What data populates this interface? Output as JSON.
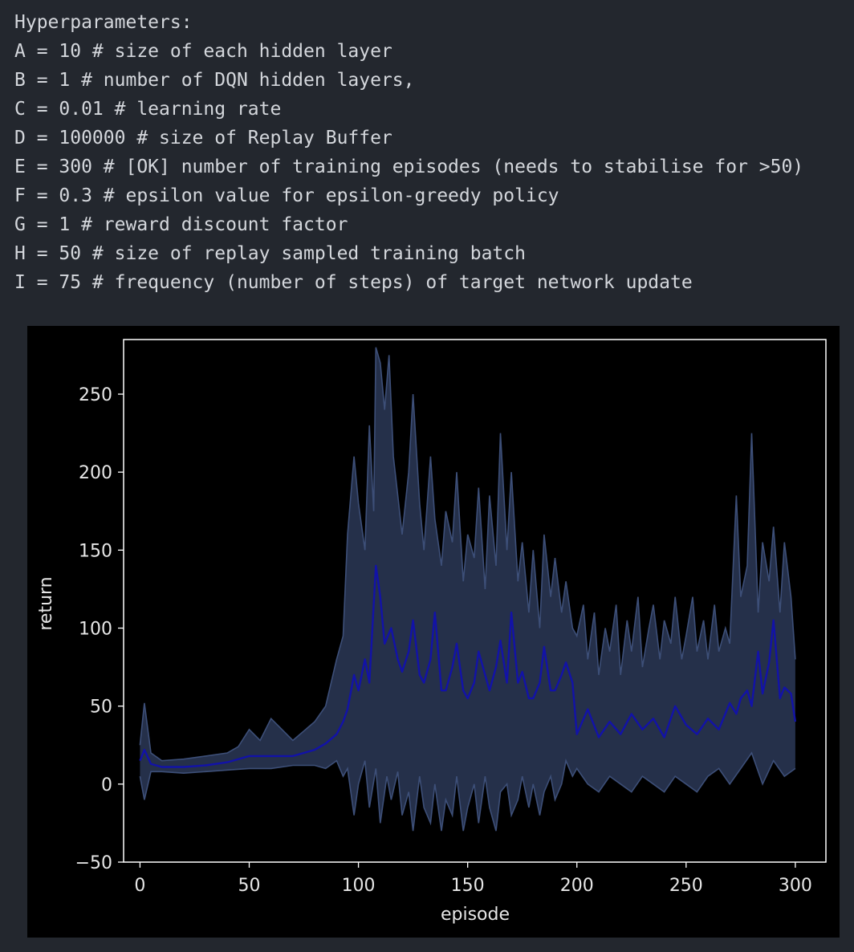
{
  "output": {
    "lines": [
      "Hyperparameters:",
      "A = 10 # size of each hidden layer",
      "B = 1 # number of DQN hidden layers,",
      "C = 0.01 # learning rate",
      "D = 100000 # size of Replay Buffer",
      "E = 300 # [OK] number of training episodes (needs to stabilise for >50)",
      "F = 0.3 # epsilon value for epsilon-greedy policy",
      "G = 1 # reward discount factor",
      "H = 50 # size of replay sampled training batch",
      "I = 75 # frequency (number of steps) of target network update"
    ]
  },
  "chart_data": {
    "type": "line",
    "title": "",
    "xlabel": "episode",
    "ylabel": "return",
    "xlim": [
      -7.5,
      314
    ],
    "ylim": [
      -50,
      285
    ],
    "xticks": [
      0,
      50,
      100,
      150,
      200,
      250,
      300
    ],
    "yticks": [
      -50,
      0,
      50,
      100,
      150,
      200,
      250
    ],
    "grid": false,
    "colors": {
      "background": "#000000",
      "axes": "#ffffff",
      "mean_line": "#1212a8",
      "band_fill": "#25304a",
      "band_edge": "#3d4f78"
    },
    "series": [
      {
        "kind": "mean",
        "x": [
          0,
          2,
          5,
          10,
          20,
          30,
          40,
          50,
          60,
          70,
          80,
          85,
          90,
          93,
          95,
          98,
          100,
          103,
          105,
          108,
          110,
          112,
          115,
          118,
          120,
          123,
          125,
          128,
          130,
          133,
          135,
          138,
          140,
          143,
          145,
          148,
          150,
          153,
          155,
          158,
          160,
          163,
          165,
          168,
          170,
          173,
          175,
          178,
          180,
          183,
          185,
          188,
          190,
          193,
          195,
          198,
          200,
          205,
          210,
          215,
          220,
          225,
          230,
          235,
          240,
          245,
          250,
          255,
          260,
          265,
          270,
          273,
          275,
          278,
          280,
          283,
          285,
          288,
          290,
          293,
          295,
          298,
          300
        ],
        "y": [
          15,
          22,
          13,
          11,
          11,
          12,
          14,
          18,
          18,
          18,
          22,
          26,
          32,
          40,
          48,
          70,
          60,
          80,
          65,
          140,
          120,
          90,
          100,
          80,
          72,
          85,
          105,
          70,
          65,
          80,
          110,
          60,
          60,
          75,
          90,
          60,
          55,
          65,
          85,
          70,
          60,
          75,
          92,
          65,
          110,
          65,
          72,
          55,
          55,
          65,
          88,
          60,
          60,
          70,
          78,
          65,
          32,
          48,
          30,
          40,
          32,
          45,
          35,
          42,
          30,
          50,
          38,
          32,
          42,
          35,
          52,
          45,
          55,
          60,
          50,
          85,
          58,
          78,
          105,
          55,
          62,
          58,
          40
        ]
      },
      {
        "kind": "upper",
        "x": [
          0,
          2,
          5,
          10,
          20,
          30,
          40,
          45,
          50,
          55,
          60,
          65,
          70,
          80,
          85,
          90,
          93,
          95,
          98,
          100,
          103,
          105,
          107,
          108,
          110,
          112,
          114,
          116,
          118,
          120,
          123,
          125,
          128,
          130,
          133,
          135,
          138,
          140,
          143,
          145,
          148,
          150,
          153,
          155,
          158,
          160,
          163,
          165,
          168,
          170,
          173,
          175,
          178,
          180,
          183,
          185,
          188,
          190,
          193,
          195,
          198,
          200,
          203,
          205,
          208,
          210,
          213,
          215,
          218,
          220,
          223,
          225,
          228,
          230,
          233,
          235,
          238,
          240,
          243,
          245,
          248,
          250,
          253,
          255,
          258,
          260,
          263,
          265,
          268,
          270,
          273,
          275,
          278,
          280,
          283,
          285,
          288,
          290,
          293,
          295,
          298,
          300
        ],
        "y": [
          25,
          52,
          20,
          15,
          16,
          18,
          20,
          24,
          35,
          28,
          42,
          35,
          28,
          40,
          50,
          80,
          95,
          160,
          210,
          180,
          150,
          230,
          175,
          280,
          270,
          240,
          275,
          210,
          185,
          160,
          200,
          250,
          180,
          150,
          210,
          170,
          140,
          175,
          155,
          200,
          130,
          160,
          145,
          190,
          125,
          185,
          140,
          225,
          150,
          200,
          130,
          155,
          110,
          150,
          100,
          160,
          120,
          145,
          110,
          130,
          100,
          95,
          115,
          80,
          110,
          70,
          100,
          85,
          115,
          70,
          105,
          85,
          120,
          75,
          100,
          115,
          80,
          105,
          90,
          120,
          80,
          95,
          120,
          85,
          105,
          80,
          115,
          85,
          100,
          90,
          185,
          120,
          140,
          225,
          110,
          155,
          130,
          165,
          110,
          155,
          120,
          80
        ]
      },
      {
        "kind": "lower",
        "x": [
          0,
          2,
          5,
          10,
          20,
          30,
          40,
          50,
          60,
          70,
          80,
          85,
          90,
          93,
          95,
          98,
          100,
          103,
          105,
          108,
          110,
          113,
          115,
          118,
          120,
          123,
          125,
          128,
          130,
          133,
          135,
          138,
          140,
          143,
          145,
          148,
          150,
          153,
          155,
          158,
          160,
          163,
          165,
          168,
          170,
          173,
          175,
          178,
          180,
          183,
          185,
          188,
          190,
          193,
          195,
          198,
          200,
          205,
          210,
          215,
          220,
          225,
          230,
          235,
          240,
          245,
          250,
          255,
          260,
          265,
          270,
          275,
          280,
          285,
          290,
          295,
          300
        ],
        "y": [
          5,
          -10,
          8,
          8,
          7,
          8,
          9,
          10,
          10,
          12,
          12,
          10,
          15,
          5,
          10,
          -20,
          0,
          15,
          -15,
          10,
          -25,
          5,
          -10,
          8,
          -20,
          -5,
          -30,
          5,
          -15,
          -25,
          0,
          -30,
          -10,
          -20,
          5,
          -30,
          -15,
          0,
          -25,
          5,
          -15,
          -30,
          -5,
          0,
          -20,
          -10,
          5,
          -15,
          0,
          -20,
          -5,
          5,
          -10,
          0,
          15,
          5,
          10,
          0,
          -5,
          5,
          0,
          -5,
          5,
          0,
          -5,
          5,
          0,
          -5,
          5,
          10,
          0,
          10,
          20,
          0,
          15,
          5,
          10
        ]
      }
    ]
  }
}
